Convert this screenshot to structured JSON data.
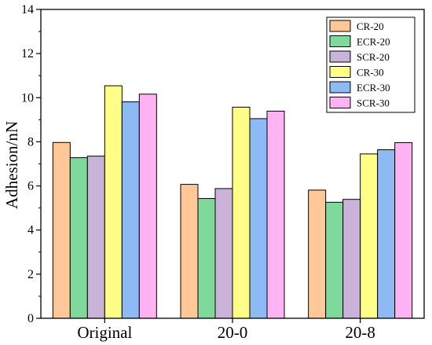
{
  "chart_data": {
    "type": "bar",
    "title": "",
    "xlabel": "",
    "ylabel": "Adhesion/nN",
    "categories": [
      "Original",
      "20-0",
      "20-8"
    ],
    "ylim": [
      0,
      14
    ],
    "yticks": [
      0,
      2,
      4,
      6,
      8,
      10,
      12,
      14
    ],
    "grid": false,
    "legend_position": "top-right",
    "series": [
      {
        "name": "CR-20",
        "color": "#FFC896",
        "values": [
          7.97,
          6.07,
          5.81
        ]
      },
      {
        "name": "ECR-20",
        "color": "#7ED99B",
        "values": [
          7.28,
          5.43,
          5.26
        ]
      },
      {
        "name": "SCR-20",
        "color": "#C9B3D9",
        "values": [
          7.35,
          5.88,
          5.39
        ]
      },
      {
        "name": "CR-30",
        "color": "#FFFF88",
        "values": [
          10.54,
          9.57,
          7.45
        ]
      },
      {
        "name": "ECR-30",
        "color": "#8DB9F5",
        "values": [
          9.81,
          9.05,
          7.64
        ]
      },
      {
        "name": "SCR-30",
        "color": "#FFB3F3",
        "values": [
          10.16,
          9.39,
          7.96
        ]
      }
    ]
  }
}
